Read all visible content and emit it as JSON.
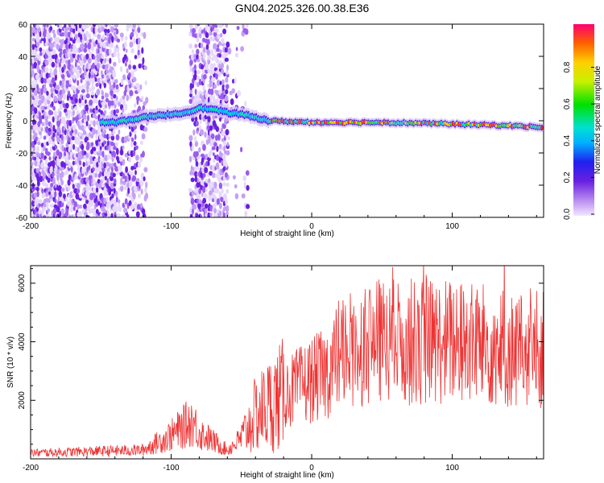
{
  "title": "GN04.2025.326.00.38.E36",
  "chart_data": [
    {
      "type": "heatmap",
      "xlabel": "Height of straight line (km)",
      "ylabel": "Frequency (Hz)",
      "xlim": [
        -200,
        165
      ],
      "ylim": [
        -60,
        60
      ],
      "xticks": [
        -200,
        -100,
        0,
        100
      ],
      "yticks": [
        -60,
        -40,
        -20,
        0,
        20,
        40,
        60
      ],
      "colorbar": {
        "label": "Normalized spectral amplitude",
        "range": [
          0,
          1
        ],
        "ticks": [
          "0.0",
          "0.2",
          "0.4",
          "0.6",
          "0.8"
        ]
      },
      "ridge": {
        "x": [
          -140,
          -120,
          -100,
          -90,
          -80,
          -70,
          -60,
          -50,
          -40,
          -30,
          0,
          50,
          100,
          140,
          165
        ],
        "freq": [
          -1,
          2,
          4,
          5,
          8,
          7,
          5,
          4,
          2,
          0,
          -1,
          -1,
          -2,
          -3,
          -4
        ]
      }
    },
    {
      "type": "line",
      "xlabel": "Height of straight line (km)",
      "ylabel": "SNR (10 * v/v)",
      "xlim": [
        -200,
        165
      ],
      "ylim": [
        0,
        6600
      ],
      "xticks": [
        -200,
        -100,
        0,
        100
      ],
      "yticks": [
        2000,
        4000,
        6000
      ],
      "color": "#ee3333",
      "trend": {
        "x": [
          -200,
          -120,
          -100,
          -85,
          -80,
          -60,
          -50,
          -40,
          -20,
          0,
          10,
          20,
          30,
          40,
          60,
          80,
          100,
          120,
          140,
          165
        ],
        "y": [
          200,
          300,
          800,
          1300,
          900,
          300,
          700,
          1500,
          2200,
          2700,
          2900,
          3600,
          3800,
          4000,
          4000,
          4000,
          4000,
          3900,
          3700,
          3700
        ]
      }
    }
  ]
}
